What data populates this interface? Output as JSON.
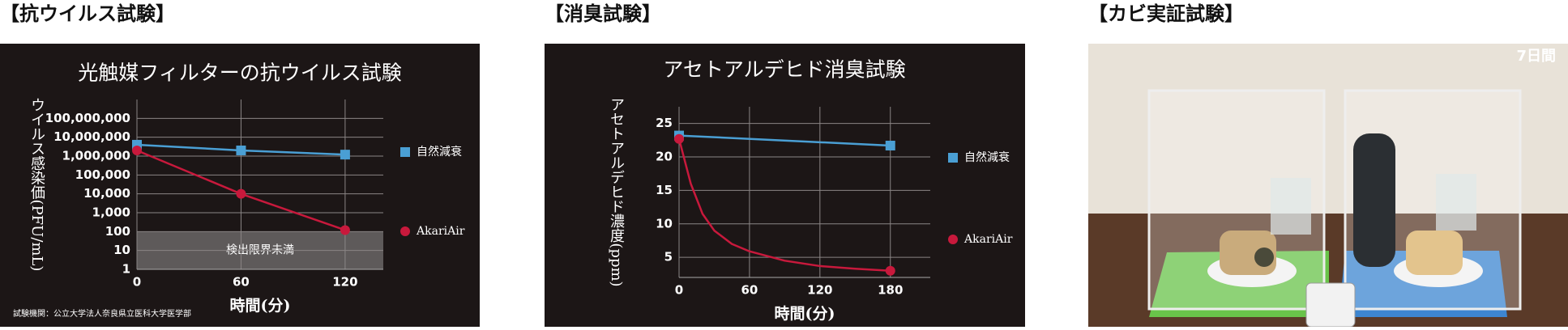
{
  "headings": [
    "【抗ウイルス試験】",
    "【消臭試験】",
    "【カビ実証試験】"
  ],
  "photo": {
    "label": "7日間"
  },
  "chart_data": [
    {
      "type": "line",
      "title": "光触媒フィルターの抗ウイルス試験",
      "x_label": "時間(分)",
      "y_label": "ウイルス感染価(PFU/mL)",
      "log_y": true,
      "grid": true,
      "xlim": [
        0,
        142
      ],
      "xticks": [
        0,
        60,
        120
      ],
      "ylim": [
        1,
        1000000000
      ],
      "yticks": [
        {
          "value": 1,
          "label": "1"
        },
        {
          "value": 10,
          "label": "10"
        },
        {
          "value": 100,
          "label": "100"
        },
        {
          "value": 1000,
          "label": "1,000"
        },
        {
          "value": 10000,
          "label": "10,000"
        },
        {
          "value": 100000,
          "label": "100,000"
        },
        {
          "value": 1000000,
          "label": "1,000,000"
        },
        {
          "value": 10000000,
          "label": "10,000,000"
        },
        {
          "value": 100000000,
          "label": "100,000,000"
        }
      ],
      "x": [
        0,
        60,
        120
      ],
      "series": [
        {
          "name": "自然減衰",
          "color": "#4a9fd4",
          "marker": "square",
          "values": [
            4000000,
            2000000,
            1200000
          ]
        },
        {
          "name": "AkariAir",
          "color": "#c8193c",
          "marker": "circle",
          "values": [
            2000000,
            10000,
            120
          ]
        }
      ],
      "shaded": {
        "text": "検出限界未満",
        "range": [
          1,
          100
        ]
      },
      "footnote": "試験機関：公立大学法人奈良県立医科大学医学部"
    },
    {
      "type": "line",
      "title": "アセトアルデヒド消臭試験",
      "x_label": "時間(分)",
      "y_label": "アセトアルデヒド濃度(ppm)",
      "log_y": false,
      "grid": true,
      "xlim": [
        0,
        214
      ],
      "xticks": [
        0,
        60,
        120,
        180
      ],
      "ylim": [
        2,
        27.5
      ],
      "yticks": [
        5,
        10,
        15,
        20,
        25
      ],
      "x": [
        0,
        10,
        20,
        30,
        45,
        60,
        90,
        120,
        150,
        180
      ],
      "series": [
        {
          "name": "自然減衰",
          "color": "#4a9fd4",
          "marker": "square",
          "values": [
            23.2,
            null,
            null,
            null,
            null,
            null,
            null,
            null,
            null,
            21.7
          ]
        },
        {
          "name": "AkariAir",
          "color": "#c8193c",
          "marker": "circle",
          "values": [
            22.7,
            16,
            11.5,
            9,
            7,
            5.9,
            4.5,
            3.7,
            3.3,
            3
          ]
        }
      ]
    }
  ]
}
